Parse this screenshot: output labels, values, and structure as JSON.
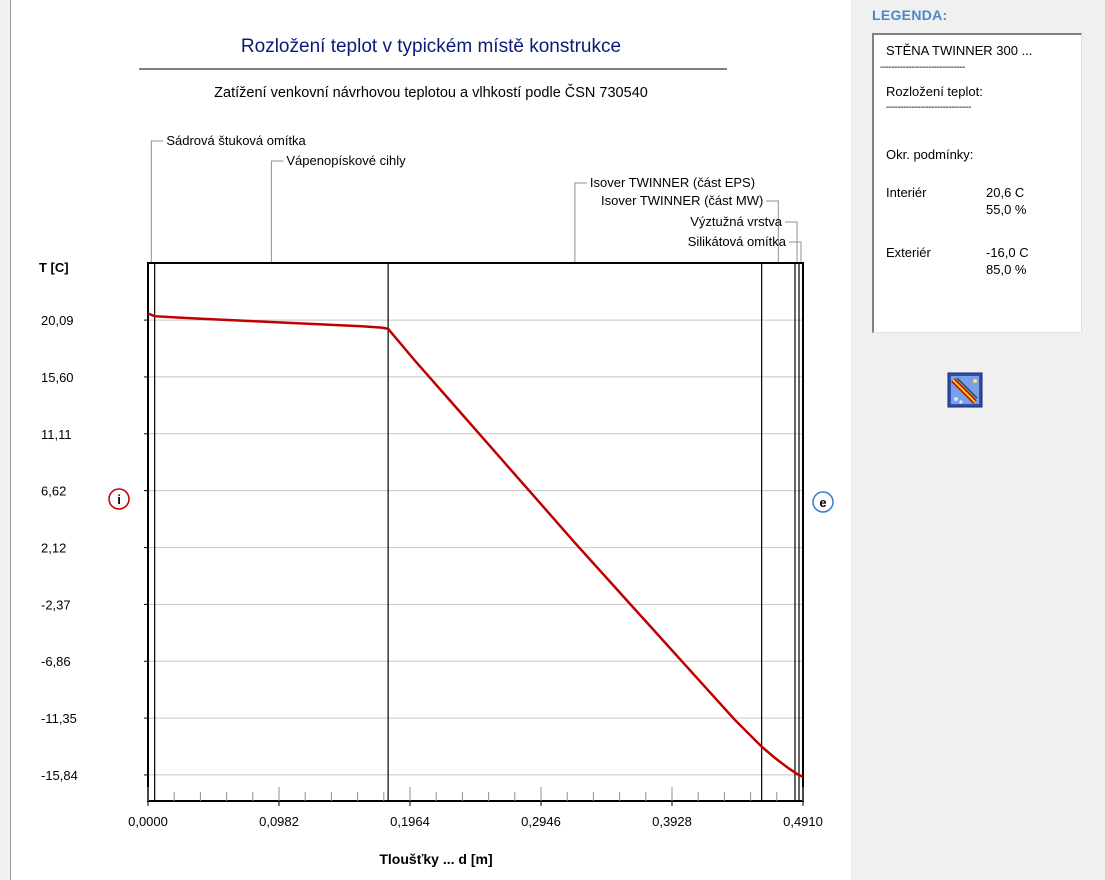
{
  "chart_data": {
    "type": "line",
    "title": "Rozložení teplot v typickém místě konstrukce",
    "subtitle": "Zatížení venkovní návrhovou teplotou a vlhkostí podle ČSN 730540",
    "xlabel": "Tloušťky ... d [m]",
    "ylabel": "T [C]",
    "xlim": [
      0,
      0.491
    ],
    "ylim": [
      -17.9,
      24.6
    ],
    "x_ticks": [
      "0,0000",
      "0,0982",
      "0,1964",
      "0,2946",
      "0,3928",
      "0,4910"
    ],
    "x_tick_values": [
      0,
      0.0982,
      0.1964,
      0.2946,
      0.3928,
      0.491
    ],
    "y_ticks": [
      "20,09",
      "15,60",
      "11,11",
      "6,62",
      "2,12",
      "-2,37",
      "-6,86",
      "-11,35",
      "-15,84"
    ],
    "y_tick_values": [
      20.09,
      15.6,
      11.11,
      6.62,
      2.12,
      -2.37,
      -6.86,
      -11.35,
      -15.84
    ],
    "grid": true,
    "series": [
      {
        "x": [
          0,
          0.005,
          0.02,
          0.04,
          0.06,
          0.08,
          0.1,
          0.12,
          0.14,
          0.16,
          0.175,
          0.18,
          0.2,
          0.23,
          0.26,
          0.29,
          0.32,
          0.35,
          0.38,
          0.41,
          0.44,
          0.46,
          0.47,
          0.48,
          0.487,
          0.491
        ],
        "values": [
          20.6,
          20.4,
          20.3,
          20.2,
          20.1,
          20.0,
          19.9,
          19.8,
          19.7,
          19.6,
          19.5,
          19.4,
          16.9,
          13.3,
          9.7,
          6.1,
          2.5,
          -1.0,
          -4.5,
          -8.0,
          -11.5,
          -13.6,
          -14.5,
          -15.3,
          -15.8,
          -16.0
        ]
      }
    ],
    "layer_boundaries": [
      0,
      0.005,
      0.18,
      0.46,
      0.485,
      0.488,
      0.491
    ],
    "layers": [
      {
        "name": "Sádrová štuková omítka",
        "x": 0.0025
      },
      {
        "name": "Vápenopískové cihly",
        "x": 0.0925
      },
      {
        "name": "Isover TWINNER (část EPS)",
        "x": 0.32
      },
      {
        "name": "Isover TWINNER (část MW)",
        "x": 0.4725
      },
      {
        "name": "Výztužná vrstva",
        "x": 0.4865
      },
      {
        "name": "Silikátová omítka",
        "x": 0.4895
      }
    ],
    "interior_marker": "i",
    "exterior_marker": "e",
    "colors": {
      "line": "#c00000",
      "interior": "#c00000",
      "exterior": "#3a7dc8",
      "grid": "#c8c8c8"
    }
  },
  "legend": {
    "title": "LEGENDA:",
    "construction": "STĚNA TWINNER 300 ...",
    "distribution": "Rozložení teplot:",
    "conditions": "Okr. podmínky:",
    "interior_label": "Interiér",
    "interior_temp": "20,6 C",
    "interior_rh": "55,0 %",
    "exterior_label": "Exteriér",
    "exterior_temp": "-16,0 C",
    "exterior_rh": "85,0 %",
    "dashes": "------------------------------"
  },
  "icons": {
    "legend_tool": "material-tool-icon"
  }
}
